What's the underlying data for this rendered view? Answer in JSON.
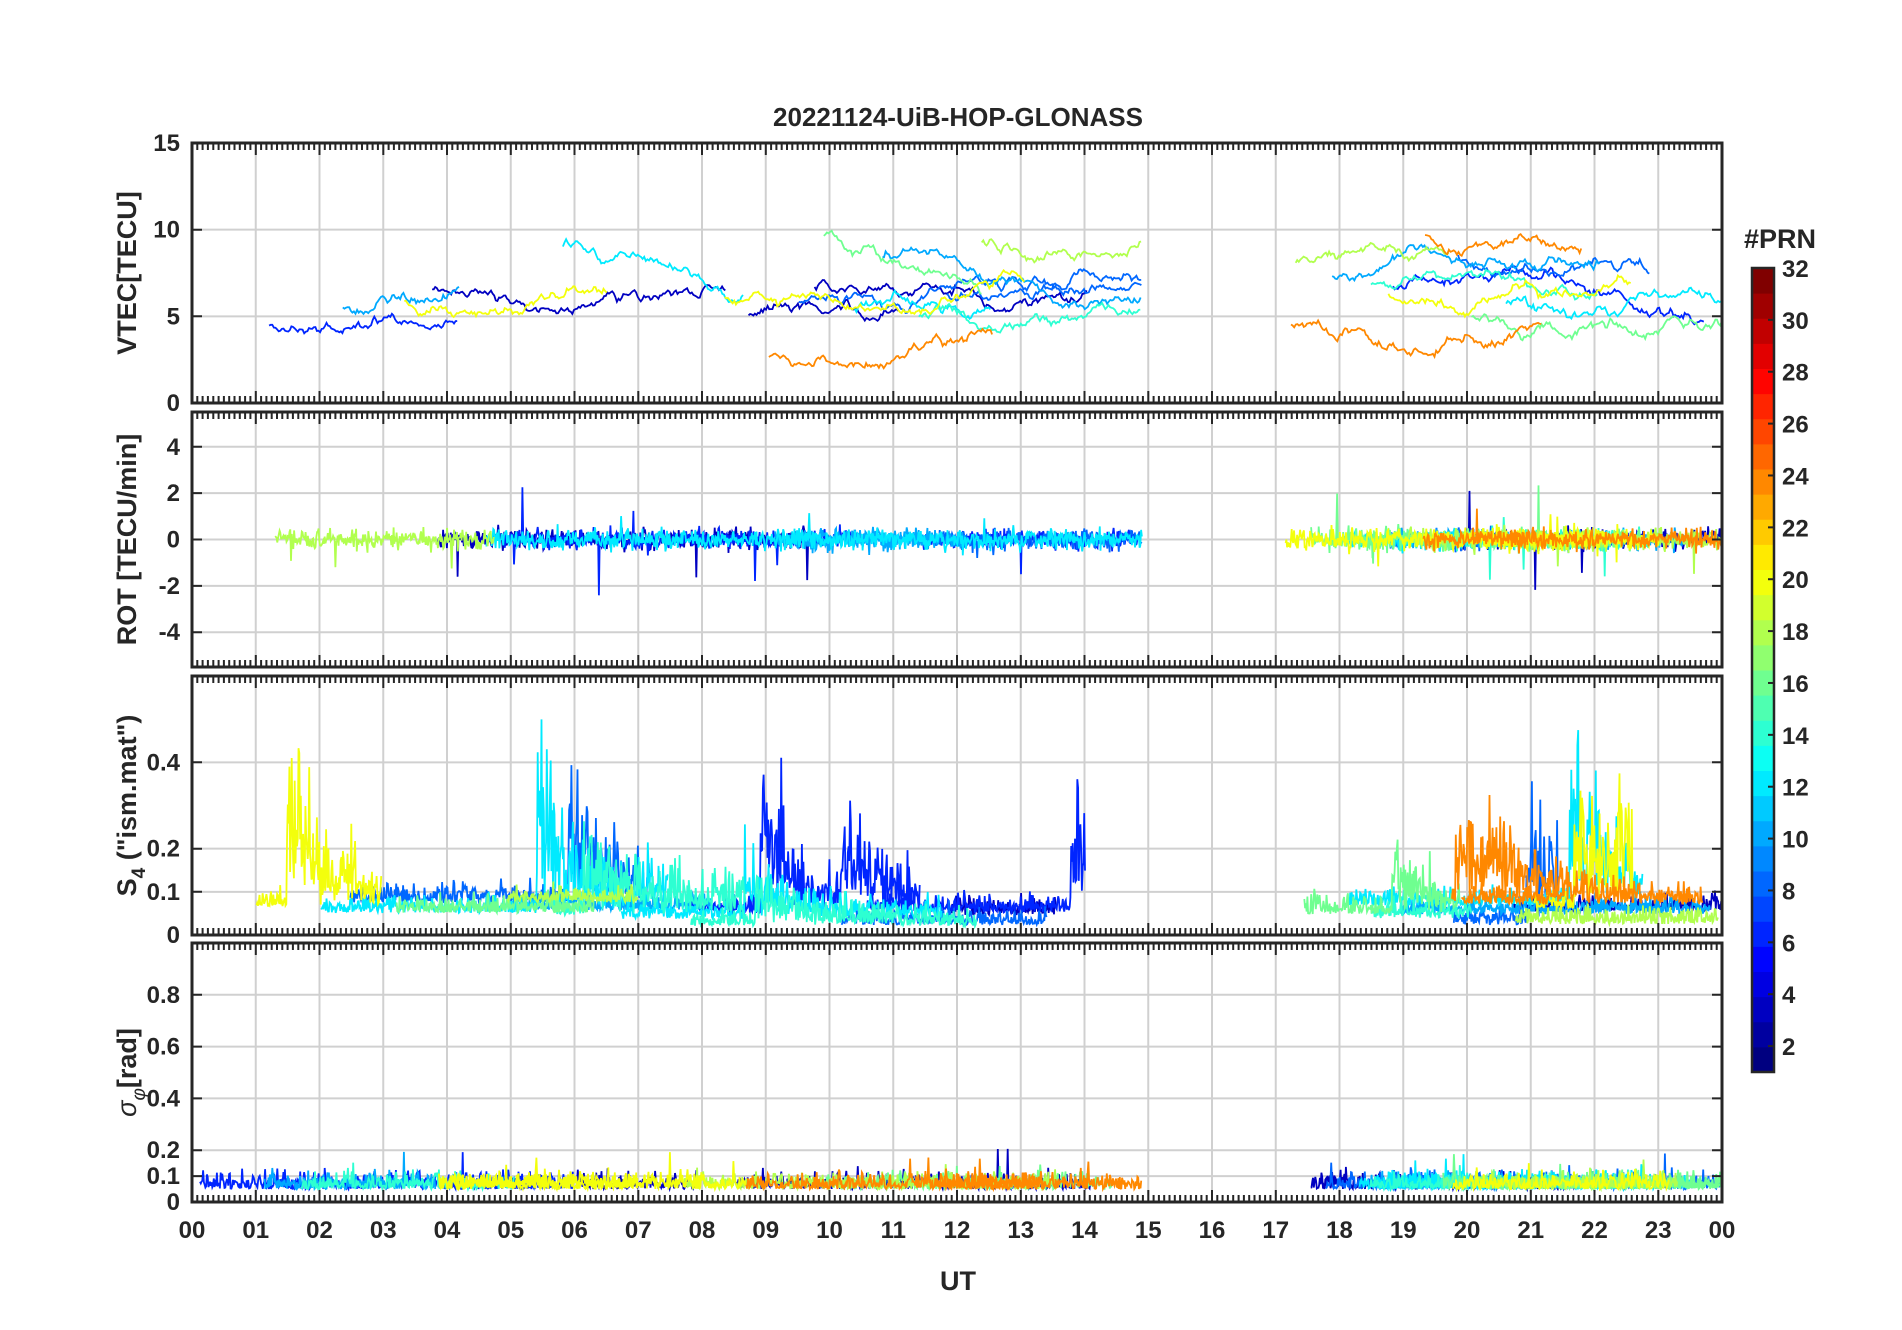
{
  "chart_data": {
    "type": "line",
    "title": "20221124-UiB-HOP-GLONASS",
    "xlabel": "UT",
    "x_tick_labels": [
      "00",
      "01",
      "02",
      "03",
      "04",
      "05",
      "06",
      "07",
      "08",
      "09",
      "10",
      "11",
      "12",
      "13",
      "14",
      "15",
      "16",
      "17",
      "18",
      "19",
      "20",
      "21",
      "22",
      "23",
      "00"
    ],
    "xlim": [
      0,
      24
    ],
    "grid": true,
    "colorbar": {
      "label": "#PRN",
      "range": [
        1,
        32
      ],
      "colormap": "jet",
      "ticks": [
        "32",
        "30",
        "28",
        "26",
        "24",
        "22",
        "20",
        "18",
        "16",
        "14",
        "12",
        "10",
        "8",
        "6",
        "4",
        "2"
      ],
      "tick_values": [
        32,
        30,
        28,
        26,
        24,
        22,
        20,
        18,
        16,
        14,
        12,
        10,
        8,
        6,
        4,
        2
      ]
    },
    "data_gap": [
      14.9,
      17.1
    ],
    "series_prns": [
      3,
      6,
      8,
      10,
      12,
      14,
      16,
      18,
      20,
      24
    ],
    "panels": [
      {
        "id": "vtec",
        "ylabel_main": "VTEC[TECU]",
        "ylim": [
          0,
          15
        ],
        "y_ticks": [
          0,
          5,
          10,
          15
        ],
        "y_tick_labels": [
          "0",
          "5",
          "10",
          "15"
        ]
      },
      {
        "id": "rot",
        "ylabel_main": "ROT [TECU/min]",
        "ylim": [
          -5.5,
          5.5
        ],
        "y_ticks": [
          -4,
          -2,
          0,
          2,
          4
        ],
        "y_tick_labels": [
          "-4",
          "-2",
          "0",
          "2",
          "4"
        ]
      },
      {
        "id": "s4",
        "ylabel_main": "S",
        "ylabel_sub": "4",
        "ylabel_suffix": " (\"ism.mat\")",
        "ylim": [
          0,
          0.6
        ],
        "y_ticks": [
          0,
          0.1,
          0.2,
          0.4
        ],
        "y_tick_labels": [
          "0",
          "0.1",
          "0.2",
          "0.4"
        ]
      },
      {
        "id": "sigma",
        "ylabel_main": "σ",
        "ylabel_sub": "φ",
        "ylabel_suffix": "[rad]",
        "ylim": [
          0,
          1
        ],
        "y_ticks": [
          0,
          0.1,
          0.2,
          0.4,
          0.6,
          0.8
        ],
        "y_tick_labels": [
          "0",
          "0.1",
          "0.2",
          "0.4",
          "0.6",
          "0.8"
        ]
      }
    ]
  }
}
